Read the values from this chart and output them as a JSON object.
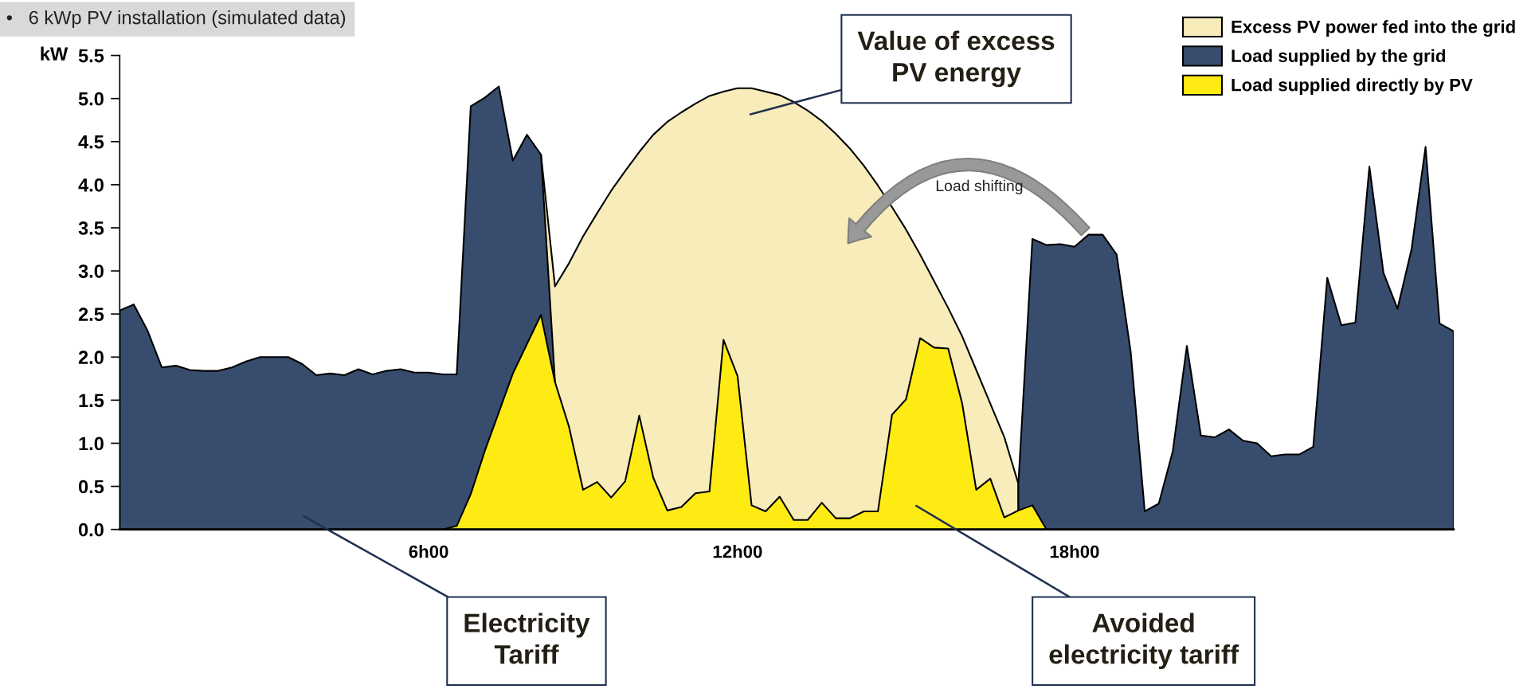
{
  "chart_data": {
    "type": "area",
    "title": "•   6 kWp PV installation (simulated data)",
    "ylabel": "kW",
    "categories": [
      null,
      null,
      null,
      null,
      null,
      null,
      null,
      null,
      null,
      null,
      null,
      null,
      null,
      null,
      null,
      null,
      null,
      null,
      null,
      null,
      null,
      null,
      "6h00",
      null,
      null,
      null,
      null,
      null,
      null,
      null,
      null,
      null,
      null,
      null,
      null,
      null,
      null,
      null,
      null,
      null,
      null,
      null,
      null,
      null,
      "12h00",
      null,
      null,
      null,
      null,
      null,
      null,
      null,
      null,
      null,
      null,
      null,
      null,
      null,
      null,
      null,
      null,
      null,
      null,
      null,
      null,
      null,
      null,
      null,
      "18h00",
      null,
      null,
      null,
      null,
      null,
      null,
      null,
      null,
      null,
      null,
      null,
      null,
      null,
      null,
      null,
      null,
      null,
      null,
      null,
      null,
      null,
      null,
      null,
      null,
      null,
      null,
      null
    ],
    "ylim": [
      0,
      5.5
    ],
    "yticks": [
      {
        "value": 0,
        "label": "0.0"
      },
      {
        "value": 0.5,
        "label": "0.5"
      },
      {
        "value": 1,
        "label": "1.0"
      },
      {
        "value": 1.5,
        "label": "1.5"
      },
      {
        "value": 2,
        "label": "2.0"
      },
      {
        "value": 2.5,
        "label": "2.5"
      },
      {
        "value": 3,
        "label": "3.0"
      },
      {
        "value": 3.5,
        "label": "3.5"
      },
      {
        "value": 4,
        "label": "4.0"
      },
      {
        "value": 4.5,
        "label": "4.5"
      },
      {
        "value": 5,
        "label": "5.0"
      },
      {
        "value": 5.5,
        "label": "5.5"
      }
    ],
    "grid": false,
    "legend": "top right",
    "series": [
      {
        "name": "Excess PV power fed into the grid",
        "color": "#f7ecba",
        "values": [
          null,
          null,
          null,
          null,
          null,
          null,
          null,
          null,
          null,
          null,
          null,
          null,
          null,
          null,
          null,
          null,
          null,
          null,
          null,
          null,
          null,
          null,
          null,
          null,
          null,
          null,
          null,
          null,
          null,
          null,
          4.35,
          2.82,
          3.09,
          3.4,
          3.67,
          3.93,
          4.16,
          4.38,
          4.58,
          4.73,
          4.84,
          4.94,
          5.03,
          5.08,
          5.12,
          5.12,
          5.08,
          5.04,
          4.96,
          4.86,
          4.74,
          4.59,
          4.42,
          4.22,
          3.99,
          3.74,
          3.48,
          3.19,
          2.88,
          2.57,
          2.24,
          1.85,
          1.46,
          1.07,
          0.53,
          null,
          null,
          null,
          null,
          null,
          null,
          null,
          null,
          null,
          null,
          null,
          null,
          null,
          null,
          null,
          null,
          null,
          null,
          null,
          null,
          null,
          null,
          null,
          null,
          null,
          null,
          null,
          null,
          null,
          null,
          null
        ]
      },
      {
        "name": "Load supplied by the grid",
        "color": "#384d6e",
        "values": [
          2.54,
          2.61,
          2.3,
          1.88,
          1.9,
          1.85,
          1.84,
          1.84,
          1.88,
          1.95,
          2.0,
          2.0,
          2.0,
          1.92,
          1.79,
          1.81,
          1.79,
          1.86,
          1.8,
          1.84,
          1.86,
          1.82,
          1.82,
          1.8,
          1.8,
          4.91,
          5.01,
          5.14,
          4.28,
          4.58,
          4.35,
          1.71,
          null,
          null,
          null,
          null,
          null,
          null,
          null,
          null,
          null,
          null,
          null,
          null,
          null,
          null,
          null,
          null,
          null,
          null,
          null,
          null,
          null,
          null,
          null,
          null,
          null,
          null,
          null,
          null,
          null,
          null,
          null,
          null,
          0.53,
          3.37,
          3.3,
          3.31,
          3.28,
          3.42,
          3.42,
          3.19,
          2.06,
          0.21,
          0.3,
          0.91,
          2.13,
          1.09,
          1.07,
          1.16,
          1.03,
          1.0,
          0.85,
          0.87,
          0.87,
          0.96,
          2.92,
          2.37,
          2.4,
          4.21,
          2.98,
          2.56,
          3.25,
          4.44,
          2.39,
          2.3
        ]
      },
      {
        "name": "Load supplied directly by PV",
        "color": "#ffeb14",
        "values": [
          null,
          null,
          null,
          null,
          null,
          null,
          null,
          null,
          null,
          null,
          null,
          null,
          null,
          null,
          null,
          null,
          null,
          null,
          null,
          null,
          null,
          null,
          null,
          0.0,
          0.04,
          0.41,
          0.91,
          1.36,
          1.81,
          2.15,
          2.49,
          1.71,
          1.19,
          0.46,
          0.55,
          0.37,
          0.56,
          1.32,
          0.6,
          0.22,
          0.26,
          0.42,
          0.44,
          2.2,
          1.78,
          0.28,
          0.21,
          0.38,
          0.11,
          0.11,
          0.31,
          0.13,
          0.13,
          0.21,
          0.21,
          1.33,
          1.51,
          2.22,
          2.11,
          2.1,
          1.46,
          0.46,
          0.59,
          0.14,
          0.22,
          0.28,
          0.0,
          null,
          null,
          null,
          null,
          null,
          null,
          null,
          null,
          null,
          null,
          null,
          null,
          null,
          null,
          null,
          null,
          null,
          null,
          null,
          null,
          null,
          null,
          null,
          null,
          null,
          null,
          null,
          null,
          null
        ]
      }
    ],
    "annotations": [
      "Value of excess\nPV energy",
      "Electricity\nTariff",
      "Avoided\nelectricity tariff",
      "Load shifting"
    ]
  }
}
